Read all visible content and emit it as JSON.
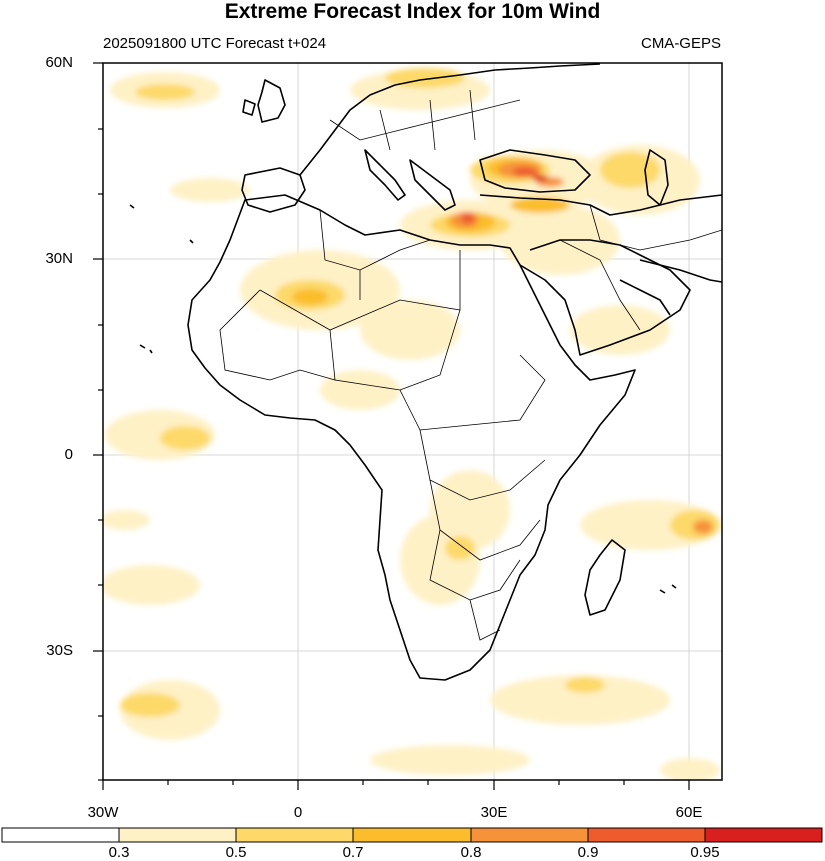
{
  "title": "Extreme Forecast Index for 10m Wind",
  "run_info": "2025091800 UTC Forecast t+024",
  "model": "CMA-GEPS",
  "lat_labels": [
    "60N",
    "30N",
    "0",
    "30S"
  ],
  "lon_labels": [
    "30W",
    "0",
    "30E",
    "60E"
  ],
  "colorbar": {
    "labels": [
      "0.3",
      "0.5",
      "0.7",
      "0.8",
      "0.9",
      "0.95"
    ],
    "colors": [
      "#ffffff",
      "#fff1c6",
      "#fdd969",
      "#fbbd2c",
      "#f6923a",
      "#ee5c2e",
      "#d9201f"
    ]
  },
  "colors": {
    "land_outline": "#000000",
    "grid": "#cccccc"
  }
}
